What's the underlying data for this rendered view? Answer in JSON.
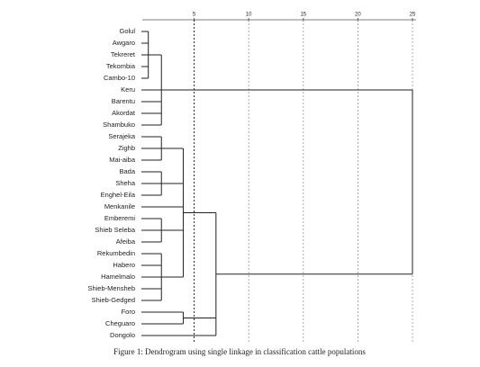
{
  "chart_data": {
    "type": "dendrogram",
    "caption": "Figure 1: Dendrogram using single linkage in classification cattle populations",
    "xlim": [
      0,
      25
    ],
    "xticks": [
      5,
      10,
      15,
      20,
      25
    ],
    "grid": true,
    "color": "#222222",
    "tree": {
      "height": 25,
      "children": [
        {
          "height": 2,
          "children": [
            {
              "height": 0.8,
              "children": [
                "Golul",
                "Awgaro",
                "Tekreret",
                "Tekombia",
                "Cambo-10"
              ]
            },
            "Keru",
            "Barentu",
            "Akordat",
            "Shambuko"
          ]
        },
        {
          "height": 7,
          "children": [
            {
              "height": 4,
              "children": [
                {
                  "height": 2,
                  "children": [
                    "Serajeka",
                    "Zighb",
                    "Mai-aiba"
                  ]
                },
                {
                  "height": 2,
                  "children": [
                    "Bada",
                    "Sheha",
                    "Enghel-Eila"
                  ]
                },
                "Menkanile",
                {
                  "height": 2,
                  "children": [
                    "Emberemi",
                    "Shieb Seleba",
                    "Afeiba"
                  ]
                },
                {
                  "height": 2,
                  "children": [
                    "Rekumbedin",
                    "Habero",
                    "Hamelmalo",
                    "Shieb-Mensheb",
                    "Shieb-Gedged"
                  ]
                }
              ]
            },
            {
              "height": 4,
              "children": [
                "Foro",
                "Cheguaro"
              ]
            },
            "Dongolo"
          ]
        }
      ]
    }
  }
}
